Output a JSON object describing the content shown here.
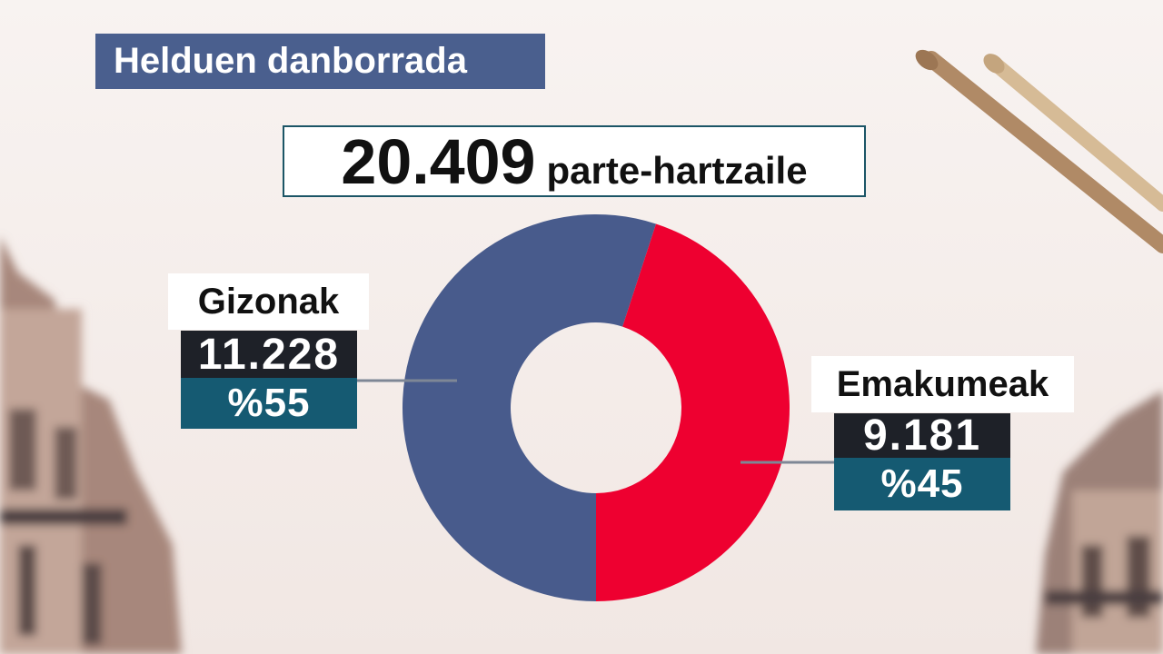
{
  "header": {
    "title": "Helduen danborrada",
    "total_number": "20.409",
    "total_unit": "parte-hartzaile"
  },
  "chart_data": {
    "type": "pie",
    "title": "Helduen danborrada",
    "total": 20409,
    "slices": [
      {
        "name": "Gizonak",
        "count_label": "11.228",
        "value": 11228,
        "percent_label": "%55",
        "percent": 55,
        "color": "#485b8c"
      },
      {
        "name": "Emakumeak",
        "count_label": "9.181",
        "value": 9181,
        "percent_label": "%45",
        "percent": 45,
        "color": "#ee0030"
      }
    ],
    "donut": true
  },
  "colors": {
    "title_bg": "#4a5f8e",
    "count_bg": "#1e2128",
    "percent_bg": "#155a72",
    "men": "#485b8c",
    "women": "#ee0030"
  }
}
